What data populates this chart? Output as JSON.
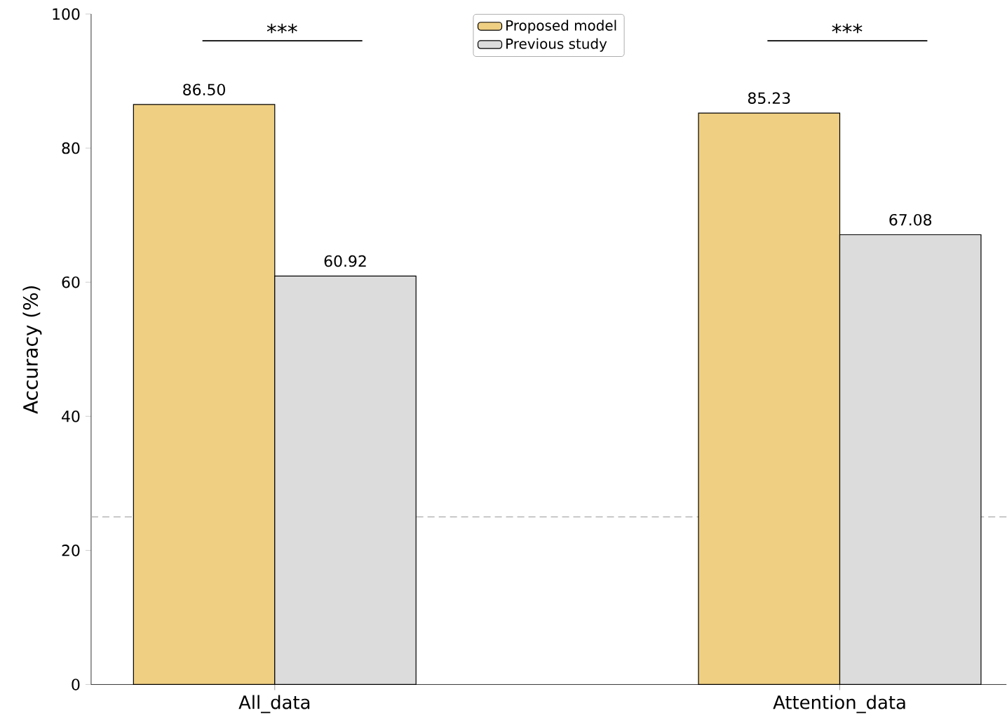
{
  "chart_data": {
    "type": "bar",
    "ylabel": "Accuracy (%)",
    "categories": [
      "All_data",
      "Attention_data"
    ],
    "series": [
      {
        "name": "Proposed model",
        "color": "#efcf82",
        "values": [
          86.5,
          85.23
        ],
        "value_labels": [
          "86.50",
          "85.23"
        ]
      },
      {
        "name": "Previous study",
        "color": "#dcdcdc",
        "values": [
          60.92,
          67.08
        ],
        "value_labels": [
          "60.92",
          "67.08"
        ]
      }
    ],
    "ylim": [
      0,
      100
    ],
    "yticks": [
      0,
      20,
      40,
      60,
      80,
      100
    ],
    "grid": false,
    "legend": "top",
    "ref_lines": [
      {
        "axis": "y",
        "value": 25,
        "color": "#b0b0b0",
        "line_style": "dashed"
      }
    ],
    "annotations": [
      "***",
      "***"
    ]
  }
}
